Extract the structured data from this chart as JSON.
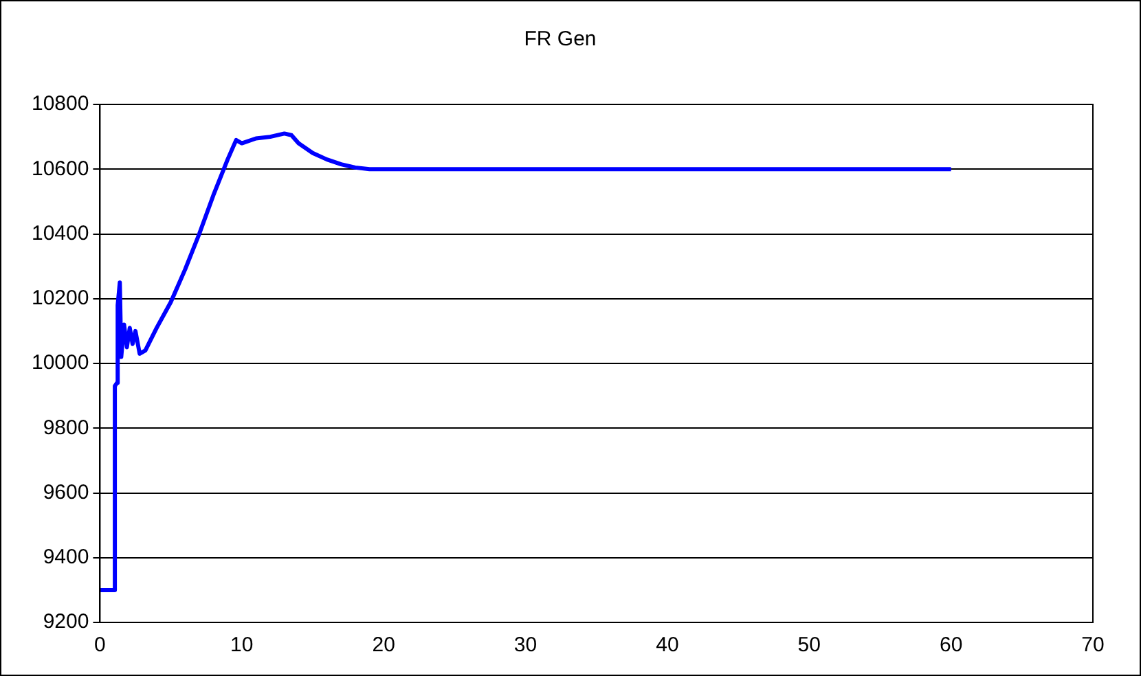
{
  "chart_data": {
    "type": "line",
    "title": "FR Gen",
    "x": [
      0,
      1.0,
      1.05,
      1.2,
      1.25,
      1.4,
      1.5,
      1.7,
      1.9,
      2.1,
      2.3,
      2.5,
      2.8,
      3.2,
      4,
      5,
      6,
      7,
      8,
      9,
      9.6,
      10,
      11,
      12,
      13,
      13.5,
      14,
      15,
      16,
      17,
      18,
      19,
      20,
      30,
      40,
      50,
      60
    ],
    "series": [
      {
        "color": "#0000ff",
        "values": [
          9300,
          9300,
          9930,
          9940,
          10180,
          10250,
          10020,
          10120,
          10050,
          10110,
          10060,
          10100,
          10030,
          10040,
          10110,
          10190,
          10290,
          10400,
          10520,
          10630,
          10690,
          10680,
          10695,
          10700,
          10710,
          10705,
          10680,
          10650,
          10630,
          10615,
          10605,
          10600,
          10600,
          10600,
          10600,
          10600,
          10600
        ]
      }
    ],
    "xlim": [
      0,
      70
    ],
    "xticks": [
      0,
      10,
      20,
      30,
      40,
      50,
      60,
      70
    ],
    "ylim": [
      9200,
      10800
    ],
    "yticks": [
      9200,
      9400,
      9600,
      9800,
      10000,
      10200,
      10400,
      10600,
      10800
    ],
    "grid": "y",
    "legend": false,
    "marker": "none",
    "line_style": "solid"
  }
}
